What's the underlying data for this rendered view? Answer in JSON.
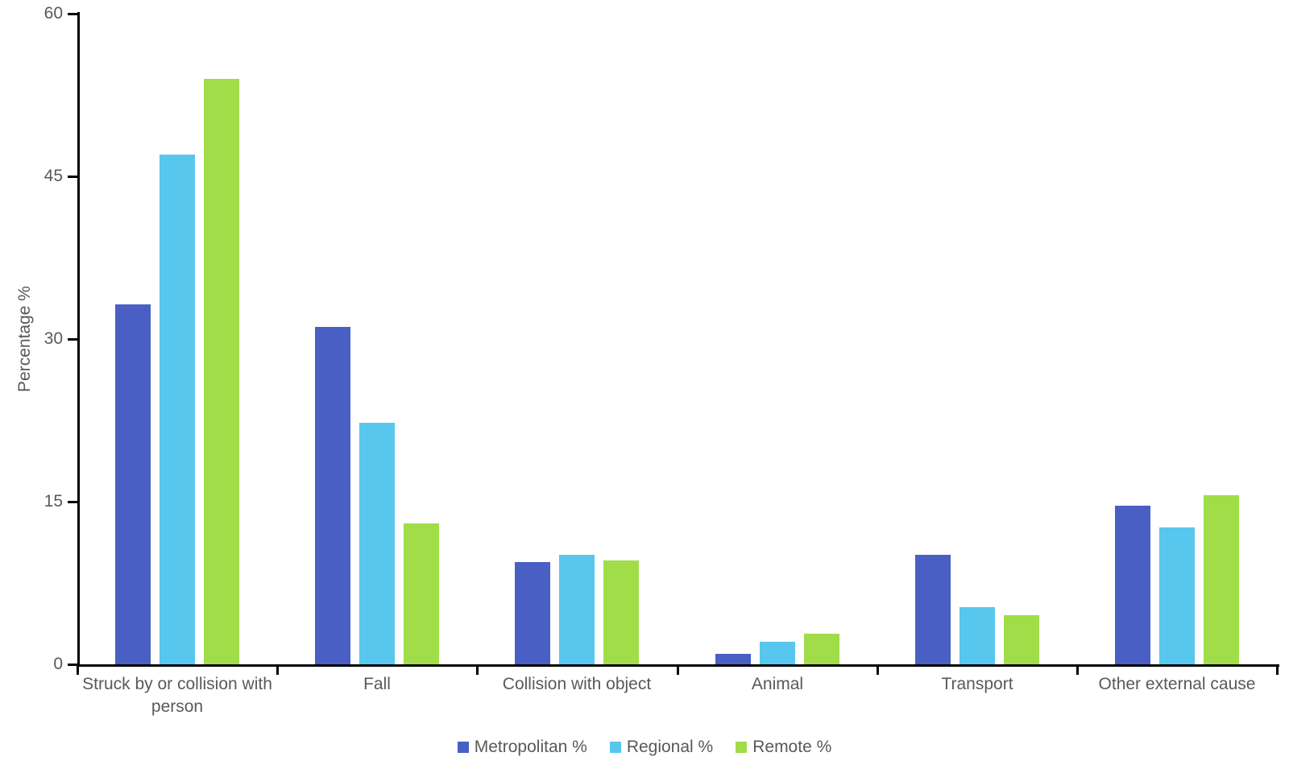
{
  "chart_data": {
    "type": "bar",
    "title": "",
    "xlabel": "",
    "ylabel": "Percentage %",
    "ylim": [
      0,
      60
    ],
    "yticks": [
      0,
      15,
      30,
      45,
      60
    ],
    "grid": false,
    "legend_position": "bottom",
    "axis_color": "#000000",
    "text_color": "#595959",
    "categories": [
      "Struck by or collision with person",
      "Fall",
      "Collision with object",
      "Animal",
      "Transport",
      "Other external cause"
    ],
    "series": [
      {
        "name": "Metropolitan %",
        "color": "#4a5fc4",
        "values": [
          33.2,
          31.1,
          9.4,
          1.0,
          10.1,
          14.6
        ]
      },
      {
        "name": "Regional %",
        "color": "#58c7ee",
        "values": [
          47.0,
          22.3,
          10.1,
          2.1,
          5.3,
          12.6
        ]
      },
      {
        "name": "Remote %",
        "color": "#a0dd48",
        "values": [
          54.0,
          13.0,
          9.6,
          2.8,
          4.5,
          15.6
        ]
      }
    ]
  }
}
